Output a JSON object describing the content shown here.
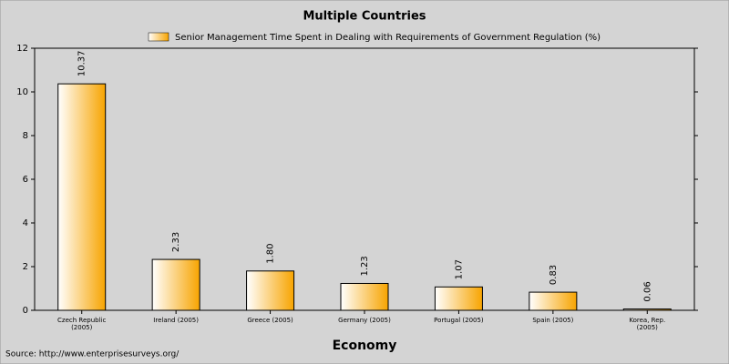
{
  "chart_data": {
    "type": "bar",
    "title": "Multiple Countries",
    "x_label": "Economy",
    "source": "Source: http://www.enterprisesurveys.org/",
    "categories": [
      "Czech Republic (2005)",
      "Ireland (2005)",
      "Greece (2005)",
      "Germany (2005)",
      "Portugal (2005)",
      "Spain (2005)",
      "Korea, Rep. (2005)"
    ],
    "series": [
      {
        "name": "Senior Management Time Spent in Dealing with Requirements of Government Regulation (%)",
        "color": "#f7a400",
        "values": [
          10.37,
          2.33,
          1.8,
          1.23,
          1.07,
          0.83,
          0.06
        ],
        "value_labels": [
          "10.37",
          "2.33",
          "1.80",
          "1.23",
          "1.07",
          "0.83",
          "0.06"
        ]
      }
    ],
    "ylim": [
      0,
      12
    ],
    "yticks": [
      0,
      2,
      4,
      6,
      8,
      10,
      12
    ],
    "grid": false
  }
}
